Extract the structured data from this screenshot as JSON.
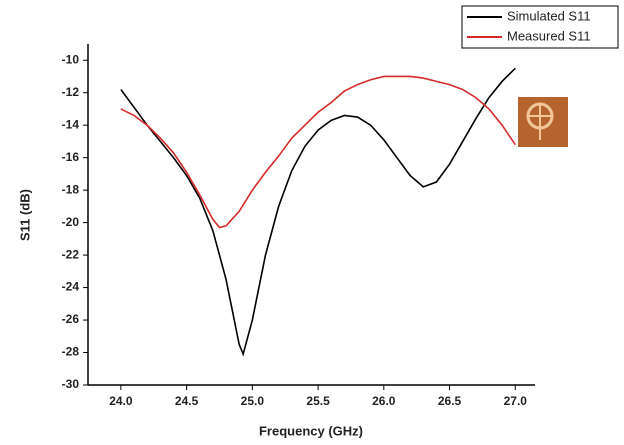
{
  "chart_data": {
    "type": "line",
    "x_label": "Frequency (GHz)",
    "y_label": "S11 (dB)",
    "xlim": [
      23.75,
      27.15
    ],
    "ylim": [
      -30,
      -9
    ],
    "xticks": [
      {
        "value": 24,
        "label": "24.0"
      },
      {
        "value": 24.5,
        "label": "24.5"
      },
      {
        "value": 25,
        "label": "25.0"
      },
      {
        "value": 25.5,
        "label": "25.5"
      },
      {
        "value": 26,
        "label": "26.0"
      },
      {
        "value": 26.5,
        "label": "26.5"
      },
      {
        "value": 27,
        "label": "27.0"
      }
    ],
    "yticks": [
      -30,
      -28,
      -26,
      -24,
      -22,
      -20,
      -18,
      -16,
      -14,
      -12,
      -10
    ],
    "series": [
      {
        "name": "Simulated S11",
        "color": "#000000",
        "x": [
          24.0,
          24.1,
          24.2,
          24.3,
          24.4,
          24.5,
          24.6,
          24.7,
          24.8,
          24.9,
          24.93,
          25.0,
          25.1,
          25.2,
          25.3,
          25.4,
          25.5,
          25.6,
          25.7,
          25.8,
          25.9,
          26.0,
          26.1,
          26.2,
          26.3,
          26.4,
          26.5,
          26.6,
          26.7,
          26.8,
          26.9,
          27.0
        ],
        "values": [
          -11.8,
          -12.9,
          -14.0,
          -15.0,
          -16.0,
          -17.1,
          -18.5,
          -20.5,
          -23.5,
          -27.5,
          -28.1,
          -26.0,
          -22.0,
          -19.0,
          -16.8,
          -15.3,
          -14.3,
          -13.7,
          -13.4,
          -13.5,
          -14.0,
          -14.9,
          -16.0,
          -17.1,
          -17.8,
          -17.5,
          -16.4,
          -15.0,
          -13.6,
          -12.3,
          -11.3,
          -10.5
        ]
      },
      {
        "name": "Measured S11",
        "color": "#d42a2a",
        "x": [
          24.0,
          24.1,
          24.2,
          24.3,
          24.4,
          24.5,
          24.6,
          24.7,
          24.75,
          24.8,
          24.9,
          25.0,
          25.1,
          25.2,
          25.3,
          25.4,
          25.5,
          25.6,
          25.7,
          25.8,
          25.9,
          26.0,
          26.1,
          26.2,
          26.3,
          26.4,
          26.5,
          26.6,
          26.7,
          26.8,
          26.9,
          27.0
        ],
        "values": [
          -13.0,
          -13.4,
          -14.0,
          -14.8,
          -15.7,
          -16.9,
          -18.3,
          -19.8,
          -20.3,
          -20.2,
          -19.3,
          -18.0,
          -16.9,
          -15.9,
          -14.8,
          -14.0,
          -13.2,
          -12.6,
          -11.9,
          -11.5,
          -11.2,
          -11.0,
          -11.0,
          -11.0,
          -11.1,
          -11.3,
          -11.5,
          -11.8,
          -12.3,
          -13.0,
          -14.0,
          -15.2
        ]
      }
    ]
  }
}
